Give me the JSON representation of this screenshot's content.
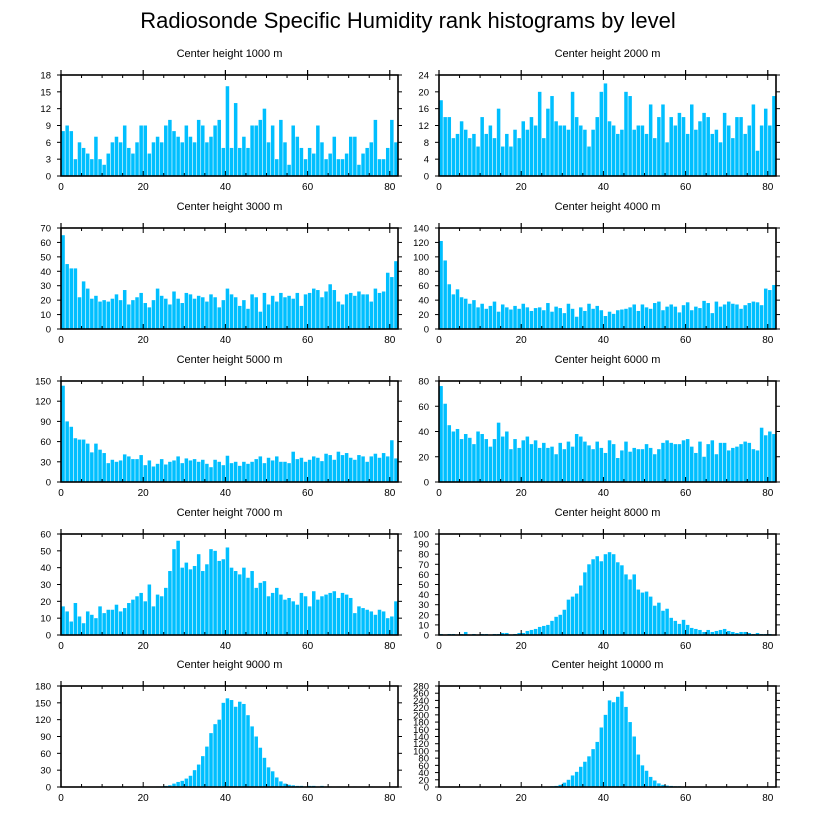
{
  "title": "Radiosonde Specific Humidity rank histograms by level",
  "bar_color": "#00BFFF",
  "axis_color": "#000000",
  "chart_data": [
    {
      "type": "bar",
      "title": "Center height 1000 m",
      "xlim": [
        0,
        82
      ],
      "xticks": [
        0,
        20,
        40,
        60,
        80
      ],
      "ylim": [
        0,
        18
      ],
      "yticks": [
        0,
        3,
        6,
        9,
        12,
        15,
        18
      ],
      "values": [
        8,
        9,
        8,
        3,
        6,
        5,
        4,
        3,
        7,
        3,
        2,
        4,
        6,
        7,
        6,
        9,
        5,
        4,
        6,
        9,
        9,
        4,
        6,
        7,
        6,
        9,
        10,
        8,
        7,
        6,
        9,
        7,
        6,
        10,
        9,
        6,
        7,
        9,
        10,
        5,
        16,
        5,
        13,
        5,
        7,
        5,
        9,
        9,
        10,
        12,
        6,
        9,
        3,
        10,
        6,
        2,
        9,
        7,
        5,
        3,
        5,
        4,
        9,
        6,
        3,
        4,
        7,
        3,
        3,
        4,
        7,
        7,
        2,
        4,
        5,
        6,
        10,
        3,
        3,
        5,
        10,
        6
      ]
    },
    {
      "type": "bar",
      "title": "Center height 2000 m",
      "xlim": [
        0,
        82
      ],
      "xticks": [
        0,
        20,
        40,
        60,
        80
      ],
      "ylim": [
        0,
        24
      ],
      "yticks": [
        0,
        4,
        8,
        12,
        16,
        20,
        24
      ],
      "values": [
        18,
        14,
        14,
        9,
        10,
        13,
        11,
        9,
        10,
        7,
        14,
        10,
        12,
        9,
        16,
        7,
        10,
        7,
        11,
        9,
        13,
        11,
        14,
        12,
        20,
        9,
        16,
        19,
        13,
        12,
        12,
        11,
        20,
        14,
        12,
        11,
        7,
        11,
        14,
        20,
        22,
        13,
        12,
        10,
        11,
        20,
        19,
        11,
        12,
        12,
        10,
        17,
        9,
        14,
        17,
        8,
        14,
        12,
        15,
        14,
        10,
        17,
        11,
        13,
        15,
        14,
        10,
        11,
        8,
        15,
        12,
        9,
        14,
        14,
        10,
        12,
        17,
        6,
        12,
        16,
        12,
        19
      ]
    },
    {
      "type": "bar",
      "title": "Center height 3000 m",
      "xlim": [
        0,
        82
      ],
      "xticks": [
        0,
        20,
        40,
        60,
        80
      ],
      "ylim": [
        0,
        70
      ],
      "yticks": [
        0,
        10,
        20,
        30,
        40,
        50,
        60,
        70
      ],
      "values": [
        65,
        45,
        42,
        42,
        22,
        33,
        28,
        21,
        23,
        19,
        20,
        19,
        21,
        24,
        20,
        27,
        17,
        20,
        22,
        25,
        18,
        15,
        20,
        28,
        23,
        21,
        17,
        26,
        21,
        18,
        25,
        24,
        21,
        23,
        22,
        19,
        24,
        22,
        15,
        20,
        28,
        24,
        22,
        16,
        20,
        14,
        24,
        22,
        12,
        25,
        17,
        23,
        19,
        25,
        22,
        23,
        21,
        25,
        16,
        24,
        25,
        28,
        27,
        22,
        26,
        31,
        27,
        19,
        17,
        24,
        25,
        23,
        26,
        24,
        24,
        19,
        28,
        25,
        26,
        39,
        36,
        47
      ]
    },
    {
      "type": "bar",
      "title": "Center height 4000 m",
      "xlim": [
        0,
        82
      ],
      "xticks": [
        0,
        20,
        40,
        60,
        80
      ],
      "ylim": [
        0,
        140
      ],
      "yticks": [
        0,
        20,
        40,
        60,
        80,
        100,
        120,
        140
      ],
      "values": [
        122,
        95,
        62,
        48,
        55,
        44,
        42,
        35,
        40,
        30,
        35,
        28,
        32,
        38,
        24,
        34,
        30,
        27,
        32,
        28,
        35,
        30,
        25,
        29,
        30,
        26,
        36,
        24,
        31,
        29,
        22,
        35,
        28,
        17,
        30,
        25,
        35,
        28,
        32,
        26,
        18,
        24,
        21,
        26,
        27,
        28,
        30,
        34,
        25,
        34,
        30,
        28,
        36,
        38,
        26,
        31,
        34,
        31,
        23,
        33,
        37,
        26,
        31,
        29,
        39,
        36,
        22,
        38,
        31,
        34,
        38,
        35,
        34,
        28,
        33,
        36,
        38,
        37,
        33,
        56,
        54,
        61
      ]
    },
    {
      "type": "bar",
      "title": "Center height 5000 m",
      "xlim": [
        0,
        82
      ],
      "xticks": [
        0,
        20,
        40,
        60,
        80
      ],
      "ylim": [
        0,
        150
      ],
      "yticks": [
        0,
        30,
        60,
        90,
        120,
        150
      ],
      "values": [
        143,
        90,
        82,
        65,
        63,
        63,
        57,
        44,
        57,
        48,
        43,
        28,
        33,
        30,
        32,
        41,
        38,
        34,
        34,
        40,
        25,
        32,
        23,
        27,
        34,
        26,
        30,
        32,
        38,
        28,
        35,
        32,
        34,
        30,
        33,
        27,
        22,
        33,
        30,
        25,
        39,
        28,
        30,
        24,
        30,
        27,
        30,
        34,
        38,
        28,
        36,
        32,
        38,
        30,
        30,
        28,
        45,
        34,
        36,
        30,
        33,
        38,
        36,
        31,
        42,
        40,
        33,
        45,
        40,
        43,
        36,
        33,
        40,
        38,
        30,
        38,
        42,
        36,
        43,
        38,
        62,
        35
      ]
    },
    {
      "type": "bar",
      "title": "Center height 6000 m",
      "xlim": [
        0,
        82
      ],
      "xticks": [
        0,
        20,
        40,
        60,
        80
      ],
      "ylim": [
        0,
        80
      ],
      "yticks": [
        0,
        20,
        40,
        60,
        80
      ],
      "values": [
        76,
        62,
        45,
        40,
        42,
        34,
        38,
        35,
        30,
        40,
        38,
        34,
        28,
        34,
        47,
        36,
        40,
        26,
        34,
        27,
        33,
        36,
        30,
        33,
        27,
        31,
        27,
        28,
        22,
        31,
        26,
        32,
        28,
        38,
        36,
        32,
        29,
        26,
        32,
        27,
        23,
        33,
        30,
        19,
        25,
        32,
        24,
        27,
        26,
        26,
        30,
        27,
        22,
        26,
        31,
        33,
        31,
        30,
        30,
        33,
        34,
        28,
        23,
        32,
        20,
        30,
        33,
        22,
        31,
        31,
        25,
        27,
        28,
        30,
        32,
        31,
        26,
        25,
        43,
        37,
        40,
        38
      ]
    },
    {
      "type": "bar",
      "title": "Center height 7000 m",
      "xlim": [
        0,
        82
      ],
      "xticks": [
        0,
        20,
        40,
        60,
        80
      ],
      "ylim": [
        0,
        60
      ],
      "yticks": [
        0,
        10,
        20,
        30,
        40,
        50,
        60
      ],
      "values": [
        17,
        14,
        8,
        19,
        11,
        7,
        14,
        12,
        10,
        17,
        13,
        15,
        15,
        18,
        14,
        16,
        19,
        21,
        23,
        25,
        20,
        30,
        17,
        24,
        23,
        28,
        38,
        51,
        56,
        40,
        43,
        39,
        41,
        48,
        38,
        42,
        51,
        50,
        44,
        45,
        52,
        40,
        38,
        36,
        40,
        34,
        38,
        28,
        31,
        32,
        23,
        25,
        28,
        24,
        21,
        22,
        20,
        18,
        25,
        23,
        17,
        26,
        21,
        23,
        24,
        25,
        26,
        22,
        25,
        24,
        22,
        13,
        17,
        16,
        15,
        14,
        12,
        15,
        14,
        10,
        11,
        20
      ]
    },
    {
      "type": "bar",
      "title": "Center height 8000 m",
      "xlim": [
        0,
        82
      ],
      "xticks": [
        0,
        20,
        40,
        60,
        80
      ],
      "ylim": [
        0,
        100
      ],
      "yticks": [
        0,
        10,
        20,
        30,
        40,
        50,
        60,
        70,
        80,
        90,
        100
      ],
      "values": [
        1,
        0,
        1,
        1,
        0,
        1,
        3,
        0,
        1,
        0,
        1,
        1,
        0,
        1,
        1,
        2,
        2,
        0,
        1,
        2,
        2,
        4,
        5,
        6,
        8,
        9,
        10,
        14,
        18,
        20,
        25,
        35,
        38,
        41,
        49,
        62,
        70,
        75,
        78,
        73,
        80,
        82,
        80,
        72,
        69,
        60,
        55,
        60,
        45,
        42,
        43,
        38,
        29,
        32,
        24,
        26,
        17,
        14,
        11,
        15,
        10,
        7,
        6,
        5,
        3,
        5,
        3,
        4,
        5,
        6,
        4,
        3,
        2,
        3,
        3,
        2,
        1,
        2,
        1,
        1,
        1,
        0
      ]
    },
    {
      "type": "bar",
      "title": "Center height 9000 m",
      "xlim": [
        0,
        82
      ],
      "xticks": [
        0,
        20,
        40,
        60,
        80
      ],
      "ylim": [
        0,
        180
      ],
      "yticks": [
        0,
        30,
        60,
        90,
        120,
        150,
        180
      ],
      "values": [
        0,
        0,
        0,
        0,
        0,
        0,
        0,
        0,
        0,
        0,
        0,
        0,
        0,
        0,
        0,
        0,
        0,
        0,
        0,
        0,
        0,
        0,
        0,
        1,
        1,
        2,
        3,
        6,
        9,
        11,
        15,
        20,
        30,
        40,
        55,
        72,
        96,
        112,
        120,
        150,
        158,
        155,
        143,
        152,
        148,
        128,
        108,
        90,
        70,
        52,
        35,
        28,
        17,
        10,
        6,
        4,
        3,
        2,
        2,
        1,
        2,
        2,
        1,
        2,
        1,
        1,
        0,
        1,
        0,
        0,
        0,
        1,
        0,
        0,
        0,
        1,
        0,
        0,
        0,
        0,
        0,
        0
      ]
    },
    {
      "type": "bar",
      "title": "Center height 10000 m",
      "xlim": [
        0,
        82
      ],
      "xticks": [
        0,
        20,
        40,
        60,
        80
      ],
      "ylim": [
        0,
        280
      ],
      "yticks": [
        0,
        20,
        40,
        60,
        80,
        100,
        120,
        140,
        160,
        180,
        200,
        220,
        240,
        260,
        280
      ],
      "values": [
        0,
        0,
        0,
        0,
        0,
        0,
        0,
        0,
        0,
        0,
        0,
        0,
        0,
        0,
        0,
        0,
        0,
        0,
        0,
        0,
        0,
        0,
        0,
        0,
        0,
        0,
        1,
        2,
        3,
        6,
        12,
        20,
        32,
        42,
        56,
        70,
        85,
        105,
        125,
        165,
        200,
        240,
        235,
        250,
        265,
        222,
        180,
        140,
        90,
        60,
        45,
        28,
        18,
        10,
        6,
        4,
        3,
        2,
        2,
        1,
        1,
        1,
        0,
        0,
        0,
        0,
        0,
        0,
        0,
        0,
        0,
        0,
        0,
        0,
        0,
        0,
        0,
        0,
        0,
        0,
        0,
        0
      ]
    }
  ]
}
